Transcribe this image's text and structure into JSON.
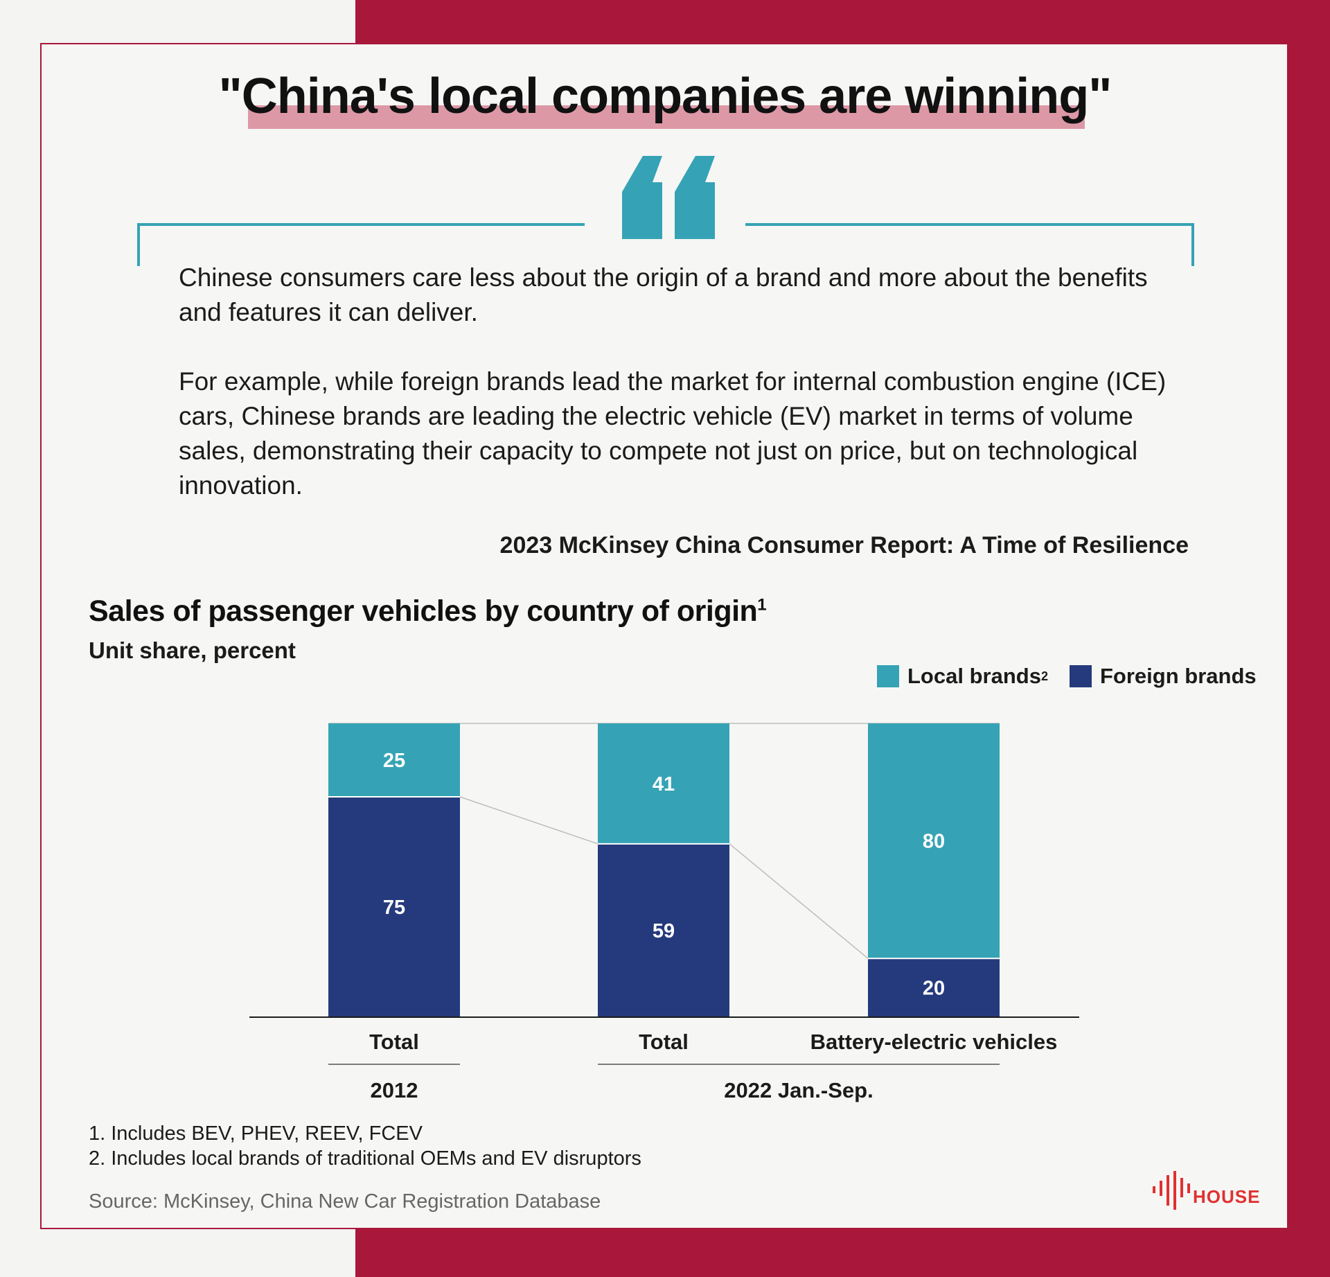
{
  "headline": "\"China's local companies are winning\"",
  "quote": {
    "p1": "Chinese consumers care less about the origin of a brand and more about the benefits and features it can deliver.",
    "p2": "For example, while foreign brands lead the market for internal combustion engine (ICE) cars, Chinese brands are leading the electric vehicle (EV) market in terms of volume sales, demonstrating their capacity to compete not just on price, but on technological innovation.",
    "source": "2023 McKinsey China Consumer Report: A Time of Resilience"
  },
  "chart_data": {
    "type": "bar",
    "stacked": true,
    "percent_stacked": true,
    "title": "Sales of passenger vehicles by country of origin",
    "title_footnote_mark": "1",
    "subtitle": "Unit share, percent",
    "categories": [
      "Total",
      "Total",
      "Battery-electric vehicles"
    ],
    "groups": [
      {
        "label": "2012",
        "categories": [
          0
        ]
      },
      {
        "label": "2022 Jan.-Sep.",
        "categories": [
          1,
          2
        ]
      }
    ],
    "series": [
      {
        "name": "Local brands",
        "footnote_mark": "2",
        "color": "#35a3b5",
        "values": [
          25,
          41,
          80
        ]
      },
      {
        "name": "Foreign brands",
        "color": "#253a7c",
        "values": [
          75,
          59,
          20
        ]
      }
    ],
    "ylim": [
      0,
      100
    ],
    "legend_position": "top-right",
    "grid": false
  },
  "footnotes": [
    "1. Includes BEV, PHEV, REEV, FCEV",
    "2. Includes local brands of traditional OEMs and EV disruptors"
  ],
  "source": "Source: McKinsey, China New Car Registration Database",
  "logo": {
    "text": "HOUSE",
    "color": "#e03131"
  },
  "colors": {
    "accent_red": "#a9173a",
    "teal": "#35a3b5",
    "navy": "#253a7c",
    "highlight": "#dd98a6"
  }
}
